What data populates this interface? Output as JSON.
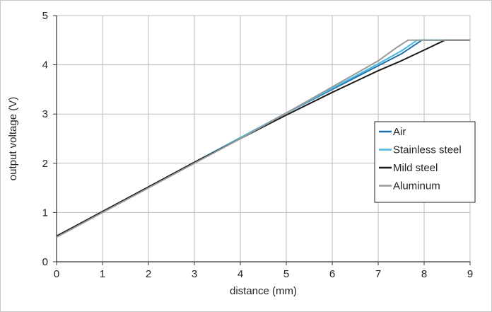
{
  "chart_data": {
    "type": "line",
    "xlabel": "distance (mm)",
    "ylabel": "output voltage (V)",
    "xlim": [
      0,
      9
    ],
    "ylim": [
      0,
      5
    ],
    "x_ticks": [
      "0",
      "1",
      "2",
      "3",
      "4",
      "5",
      "6",
      "7",
      "8",
      "9"
    ],
    "y_ticks": [
      "0",
      "1",
      "2",
      "3",
      "4",
      "5"
    ],
    "grid": true,
    "legend_position": "right",
    "series": [
      {
        "name": "Air",
        "color": "#1f6fa8",
        "x": [
          0,
          1,
          2,
          3,
          4,
          5,
          6,
          7,
          7.5,
          7.95,
          8.1,
          9
        ],
        "y": [
          0.52,
          1.02,
          1.52,
          2.02,
          2.52,
          3.02,
          3.5,
          3.98,
          4.22,
          4.5,
          4.5,
          4.5
        ]
      },
      {
        "name": "Stainless steel",
        "color": "#45b8e0",
        "x": [
          0,
          1,
          2,
          3,
          4,
          5,
          6,
          7,
          7.5,
          7.85,
          8.0,
          9
        ],
        "y": [
          0.52,
          1.02,
          1.52,
          2.02,
          2.52,
          3.02,
          3.52,
          4.02,
          4.28,
          4.5,
          4.5,
          4.5
        ]
      },
      {
        "name": "Mild steel",
        "color": "#1a1a1a",
        "x": [
          0,
          1,
          2,
          3,
          4,
          5,
          6,
          7,
          7.5,
          8.0,
          8.45,
          9
        ],
        "y": [
          0.52,
          1.02,
          1.52,
          2.02,
          2.5,
          2.98,
          3.44,
          3.88,
          4.08,
          4.3,
          4.5,
          4.5
        ]
      },
      {
        "name": "Aluminum",
        "color": "#999999",
        "x": [
          0,
          1,
          2,
          3,
          4,
          5,
          6,
          7,
          7.4,
          7.65,
          8.0,
          9
        ],
        "y": [
          0.5,
          1.0,
          1.5,
          2.0,
          2.5,
          3.02,
          3.55,
          4.08,
          4.35,
          4.5,
          4.5,
          4.5
        ]
      }
    ]
  }
}
